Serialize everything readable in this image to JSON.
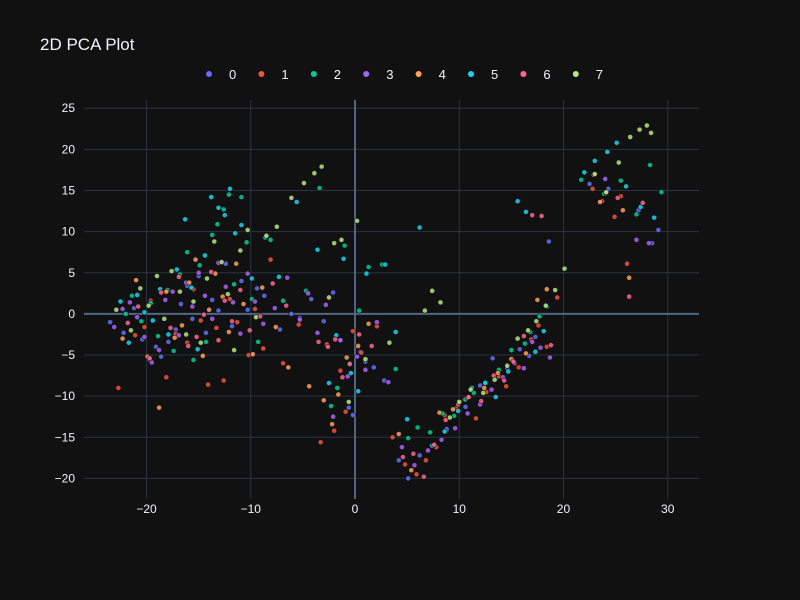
{
  "chart_data": {
    "type": "scatter",
    "title": "2D PCA Plot",
    "xlabel": "",
    "ylabel": "",
    "xlim": [
      -26,
      33
    ],
    "ylim": [
      -22.5,
      26
    ],
    "xticks": [
      -20,
      -10,
      0,
      10,
      20,
      30
    ],
    "xtick_labels": [
      "−20",
      "−10",
      "0",
      "10",
      "20",
      "30"
    ],
    "yticks": [
      -20,
      -15,
      -10,
      -5,
      0,
      5,
      10,
      15,
      20,
      25
    ],
    "ytick_labels": [
      "−20",
      "−15",
      "−10",
      "−5",
      "0",
      "5",
      "10",
      "15",
      "20",
      "25"
    ],
    "grid": true,
    "legend": "top-center-horizontal",
    "background": "#111111",
    "series": [
      {
        "name": "0",
        "color": "#636efa",
        "x": [
          -23.5,
          -22.2,
          -21.2,
          -20.4,
          -19.8,
          -19.1,
          -18.6,
          -17.9,
          -17.2,
          -16.7,
          -16.1,
          -15.6,
          -15.0,
          -14.3,
          -13.7,
          -13.1,
          -12.4,
          -11.8,
          -10.9,
          -10.3,
          -9.4,
          -8.7,
          -7.2,
          -6.1,
          -5.3,
          -4.2,
          -3.0,
          -2.1,
          -1.4,
          -0.6,
          -0.2,
          0.5,
          1.0,
          1.8,
          2.8,
          4.2,
          5.1,
          6.2,
          8.8,
          10.6,
          12.0,
          13.2,
          14.6,
          15.8,
          16.7,
          17.3,
          18.6,
          22.5,
          24.3,
          27.2,
          28.5,
          29.1
        ],
        "y": [
          -1.0,
          -2.3,
          0.7,
          -3.1,
          -5.5,
          -4.0,
          -5.2,
          -3.4,
          -1.9,
          1.2,
          3.4,
          -0.6,
          4.6,
          -2.3,
          1.7,
          0.4,
          6.1,
          -1.5,
          4.0,
          0.5,
          3.1,
          2.2,
          -1.9,
          0.0,
          -0.5,
          1.8,
          -0.9,
          2.6,
          -3.2,
          -11.4,
          -12.3,
          -4.6,
          -5.8,
          -6.5,
          -8.1,
          -17.8,
          -20.0,
          -17.2,
          -14.0,
          -11.3,
          -8.7,
          -5.4,
          -6.6,
          -4.3,
          -5.1,
          -2.8,
          8.8,
          15.8,
          15.2,
          12.6,
          8.6,
          10.2
        ]
      },
      {
        "name": "1",
        "color": "#EF553B",
        "x": [
          -22.7,
          -21.1,
          -20.2,
          -19.6,
          -18.1,
          -17.2,
          -16.1,
          -15.5,
          -14.8,
          -14.1,
          -13.3,
          -12.6,
          -12.0,
          -11.3,
          -10.2,
          -9.6,
          -8.8,
          -8.1,
          -6.9,
          -5.4,
          -3.3,
          -2.7,
          -2.0,
          -1.4,
          -0.9,
          -0.2,
          0.6,
          2.1,
          3.6,
          4.8,
          5.9,
          6.8,
          7.8,
          8.6,
          9.7,
          10.5,
          11.6,
          12.6,
          13.8,
          14.5,
          15.7,
          16.9,
          17.6,
          18.4,
          19.4,
          22.8,
          23.7,
          24.9,
          25.5,
          26.1
        ],
        "y": [
          -9.0,
          -2.6,
          -1.6,
          1.6,
          -7.7,
          -2.4,
          -3.5,
          3.0,
          -0.8,
          -8.6,
          -1.7,
          -8.1,
          1.8,
          -1.0,
          -5.0,
          0.6,
          -4.2,
          6.6,
          -6.0,
          -1.3,
          -15.6,
          -3.7,
          -14.2,
          -6.9,
          -11.9,
          -2.1,
          -4.7,
          -1.5,
          -15.0,
          -18.3,
          -19.5,
          -17.8,
          -16.2,
          -12.3,
          -11.5,
          -10.4,
          -12.7,
          -9.5,
          -7.6,
          -8.8,
          -6.5,
          -3.1,
          -1.4,
          -4.0,
          2.0,
          15.2,
          13.7,
          11.8,
          14.3,
          6.1
        ]
      },
      {
        "name": "2",
        "color": "#00cc96",
        "x": [
          -22.0,
          -21.4,
          -20.5,
          -19.6,
          -18.9,
          -18.0,
          -17.4,
          -16.8,
          -16.1,
          -15.5,
          -14.9,
          -14.3,
          -13.7,
          -13.2,
          -12.6,
          -12.1,
          -11.6,
          -10.9,
          -10.4,
          -9.9,
          -9.3,
          -8.1,
          -6.9,
          -4.7,
          -3.4,
          -2.3,
          -1.7,
          -1.0,
          -0.5,
          0.4,
          1.3,
          2.6,
          3.9,
          5.1,
          6.0,
          7.2,
          8.4,
          9.5,
          10.6,
          11.4,
          12.5,
          13.8,
          15.0,
          16.3,
          16.8,
          17.7,
          18.4,
          21.7,
          23.9,
          25.5,
          27.0,
          28.3,
          29.4
        ],
        "y": [
          0.0,
          2.2,
          -0.9,
          1.3,
          -2.7,
          2.9,
          -4.5,
          4.8,
          7.5,
          -5.6,
          5.9,
          -3.4,
          9.6,
          10.9,
          12.7,
          14.5,
          3.6,
          14.2,
          8.7,
          1.8,
          -3.4,
          9.0,
          1.6,
          2.8,
          15.3,
          -11.2,
          -9.0,
          8.3,
          -6.0,
          0.4,
          5.7,
          6.0,
          -6.7,
          -15.1,
          -13.8,
          -14.4,
          -12.1,
          -12.4,
          -10.4,
          -9.6,
          -8.3,
          -6.8,
          -4.4,
          -3.6,
          -2.2,
          -0.3,
          0.9,
          16.3,
          14.6,
          16.2,
          12.1,
          18.1,
          14.8
        ]
      },
      {
        "name": "3",
        "color": "#ab63fa",
        "x": [
          -23.1,
          -22.3,
          -21.6,
          -20.9,
          -20.2,
          -19.5,
          -18.8,
          -18.2,
          -17.5,
          -16.9,
          -16.2,
          -15.6,
          -15.0,
          -14.4,
          -13.7,
          -13.1,
          -12.4,
          -11.7,
          -11.0,
          -10.3,
          -9.6,
          -8.8,
          -7.7,
          -6.5,
          -5.3,
          -4.5,
          -3.6,
          -2.8,
          -2.1,
          -1.4,
          -0.7,
          0.2,
          1.0,
          2.1,
          3.2,
          4.5,
          5.7,
          7.0,
          8.3,
          9.6,
          10.8,
          12.0,
          13.1,
          14.2,
          15.3,
          16.2,
          17.0,
          17.8,
          18.7,
          24.0,
          27.0,
          28.2
        ],
        "y": [
          -1.6,
          0.6,
          1.4,
          -0.4,
          -2.8,
          -5.9,
          -4.4,
          1.7,
          2.7,
          -2.6,
          3.8,
          0.9,
          5.0,
          2.2,
          -0.6,
          6.2,
          3.3,
          1.4,
          -2.4,
          4.9,
          1.5,
          -1.2,
          0.7,
          4.4,
          -0.7,
          2.5,
          -2.3,
          1.1,
          -12.5,
          -3.2,
          -7.6,
          -5.2,
          -6.8,
          -1.0,
          -8.3,
          -16.2,
          -18.4,
          -16.6,
          -15.3,
          -13.9,
          -12.1,
          -11.0,
          -9.2,
          -7.7,
          -6.0,
          -6.6,
          -3.4,
          -4.1,
          -5.3,
          16.4,
          9.0,
          8.6
        ]
      },
      {
        "name": "4",
        "color": "#FFA15A",
        "x": [
          -22.3,
          -21.0,
          -19.9,
          -18.8,
          -18.1,
          -17.3,
          -16.6,
          -15.9,
          -15.3,
          -14.6,
          -14.0,
          -13.4,
          -12.7,
          -12.1,
          -11.4,
          -10.7,
          -9.8,
          -8.9,
          -7.6,
          -6.4,
          -4.4,
          -3.0,
          -2.2,
          -1.6,
          -0.8,
          0.3,
          1.3,
          4.2,
          5.4,
          8.1,
          9.4,
          10.8,
          12.4,
          13.7,
          15.0,
          16.4,
          17.5,
          18.4,
          23.5,
          25.7,
          26.3
        ],
        "y": [
          -3.0,
          4.1,
          -5.2,
          -11.4,
          2.7,
          -2.9,
          -1.4,
          3.8,
          6.6,
          -5.1,
          0.5,
          4.9,
          2.1,
          -2.2,
          6.1,
          1.2,
          -4.9,
          3.2,
          -1.6,
          -6.5,
          -8.8,
          -10.5,
          -13.4,
          -9.8,
          -5.3,
          -3.9,
          -1.2,
          -14.6,
          -19.0,
          -12.0,
          -11.6,
          -10.2,
          -9.0,
          -7.2,
          -5.5,
          -4.8,
          1.7,
          3.0,
          13.6,
          12.6,
          4.4
        ]
      },
      {
        "name": "5",
        "color": "#19d3f3",
        "x": [
          -22.5,
          -21.7,
          -20.9,
          -20.2,
          -19.4,
          -18.7,
          -17.9,
          -17.1,
          -16.3,
          -15.7,
          -15.1,
          -14.4,
          -13.8,
          -13.1,
          -12.5,
          -12.0,
          -11.5,
          -10.9,
          -9.9,
          -8.6,
          -7.3,
          -5.6,
          -3.6,
          -2.5,
          -1.8,
          -1.1,
          -0.4,
          0.3,
          1.1,
          2.9,
          3.9,
          5.0,
          6.2,
          7.4,
          8.6,
          9.9,
          11.2,
          12.5,
          13.5,
          14.7,
          15.6,
          16.4,
          17.3,
          18.1,
          22.0,
          23.0,
          24.2,
          25.1,
          26.0,
          27.4,
          28.7
        ],
        "y": [
          1.5,
          -3.5,
          2.3,
          0.2,
          -0.8,
          3.0,
          -2.5,
          5.4,
          11.5,
          3.2,
          -4.3,
          7.1,
          14.2,
          12.9,
          12.0,
          15.2,
          9.8,
          10.8,
          4.3,
          9.3,
          4.5,
          13.6,
          7.8,
          -8.4,
          -2.6,
          6.7,
          -7.2,
          -9.4,
          4.9,
          6.0,
          -2.2,
          -12.8,
          10.5,
          -16.0,
          -14.3,
          -11.8,
          -9.0,
          -8.4,
          -10.1,
          -7.0,
          13.7,
          12.4,
          -4.6,
          -2.1,
          17.2,
          18.6,
          19.7,
          20.8,
          15.5,
          13.0,
          11.7
        ]
      },
      {
        "name": "6",
        "color": "#FF6692",
        "x": [
          -21.8,
          -20.8,
          -19.7,
          -18.6,
          -17.7,
          -16.9,
          -16.0,
          -15.2,
          -14.5,
          -13.8,
          -13.1,
          -12.5,
          -11.8,
          -11.0,
          -10.1,
          -9.1,
          -7.9,
          -6.6,
          -3.5,
          -2.6,
          -1.9,
          -1.2,
          -0.5,
          0.4,
          1.6,
          4.6,
          5.6,
          6.6,
          7.6,
          8.7,
          9.9,
          10.9,
          12.1,
          13.3,
          14.3,
          15.2,
          16.2,
          17.0,
          17.9,
          18.8,
          22.9,
          24.1,
          25.2,
          26.3,
          27.6
        ],
        "y": [
          -1.1,
          0.9,
          -5.4,
          2.6,
          -1.7,
          4.5,
          -3.9,
          -2.8,
          -0.1,
          5.1,
          -3.2,
          1.6,
          -0.9,
          2.9,
          -2.0,
          -0.3,
          3.7,
          1.0,
          -3.4,
          -4.0,
          -3.1,
          -7.7,
          -6.1,
          -2.5,
          -3.9,
          -17.4,
          -17.0,
          -19.8,
          -15.9,
          -12.9,
          -11.0,
          -10.1,
          -10.6,
          -7.5,
          -8.1,
          -5.8,
          -2.7,
          12.0,
          11.9,
          -3.8,
          16.9,
          14.7,
          14.1,
          2.1,
          13.5
        ]
      },
      {
        "name": "7",
        "color": "#B6E880",
        "x": [
          -22.9,
          -21.5,
          -20.6,
          -19.8,
          -19.0,
          -18.3,
          -17.6,
          -16.8,
          -16.2,
          -15.5,
          -14.8,
          -14.2,
          -13.5,
          -12.8,
          -12.2,
          -11.6,
          -11.0,
          -10.3,
          -9.5,
          -8.5,
          -7.5,
          -6.1,
          -4.9,
          -3.9,
          -3.2,
          -2.5,
          -2.0,
          -1.3,
          -0.6,
          0.2,
          1.0,
          3.3,
          6.7,
          7.4,
          8.2,
          9.1,
          10.0,
          11.1,
          12.3,
          13.4,
          14.6,
          15.6,
          16.6,
          17.4,
          18.3,
          19.2,
          20.1,
          23.0,
          24.1,
          25.3,
          26.4,
          27.3,
          28.0,
          28.4
        ],
        "y": [
          0.5,
          -2.0,
          3.1,
          1.0,
          4.6,
          -0.6,
          5.2,
          2.7,
          -2.5,
          1.5,
          -3.5,
          4.3,
          8.8,
          6.3,
          2.4,
          -4.4,
          7.7,
          10.2,
          -0.4,
          9.5,
          10.6,
          14.1,
          15.9,
          17.1,
          17.9,
          2.0,
          8.6,
          9.0,
          -10.7,
          11.3,
          -5.5,
          -3.5,
          0.4,
          2.8,
          1.4,
          -12.6,
          -10.7,
          -9.2,
          -9.6,
          -8.0,
          -6.3,
          -3.0,
          -2.0,
          -0.9,
          1.0,
          2.9,
          5.5,
          17.0,
          14.8,
          18.4,
          21.5,
          22.4,
          22.9,
          22.0
        ]
      }
    ]
  }
}
